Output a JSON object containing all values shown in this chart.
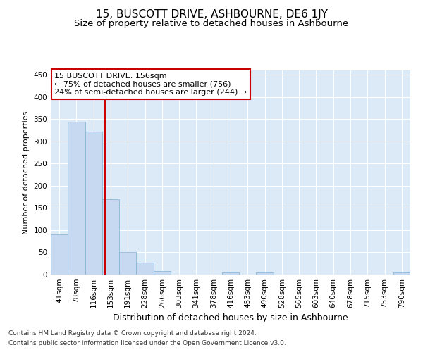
{
  "title": "15, BUSCOTT DRIVE, ASHBOURNE, DE6 1JY",
  "subtitle": "Size of property relative to detached houses in Ashbourne",
  "xlabel": "Distribution of detached houses by size in Ashbourne",
  "ylabel": "Number of detached properties",
  "bin_labels": [
    "41sqm",
    "78sqm",
    "116sqm",
    "153sqm",
    "191sqm",
    "228sqm",
    "266sqm",
    "303sqm",
    "341sqm",
    "378sqm",
    "416sqm",
    "453sqm",
    "490sqm",
    "528sqm",
    "565sqm",
    "603sqm",
    "640sqm",
    "678sqm",
    "715sqm",
    "753sqm",
    "790sqm"
  ],
  "bar_heights": [
    91,
    345,
    322,
    170,
    51,
    27,
    8,
    0,
    0,
    0,
    5,
    0,
    4,
    0,
    0,
    0,
    0,
    0,
    0,
    0,
    4
  ],
  "bar_color": "#c7d9f0",
  "bar_edge_color": "#7fafd4",
  "vline_x": 2.67,
  "vline_color": "#cc0000",
  "annotation_text": "15 BUSCOTT DRIVE: 156sqm\n← 75% of detached houses are smaller (756)\n24% of semi-detached houses are larger (244) →",
  "annotation_box_color": "#ffffff",
  "annotation_box_edge": "#cc0000",
  "ylim": [
    0,
    460
  ],
  "yticks": [
    0,
    50,
    100,
    150,
    200,
    250,
    300,
    350,
    400,
    450
  ],
  "grid_color": "#ffffff",
  "bg_color": "#dce9f7",
  "footer1": "Contains HM Land Registry data © Crown copyright and database right 2024.",
  "footer2": "Contains public sector information licensed under the Open Government Licence v3.0.",
  "title_fontsize": 11,
  "subtitle_fontsize": 9.5,
  "xlabel_fontsize": 9,
  "ylabel_fontsize": 8,
  "tick_fontsize": 7.5,
  "annotation_fontsize": 8
}
